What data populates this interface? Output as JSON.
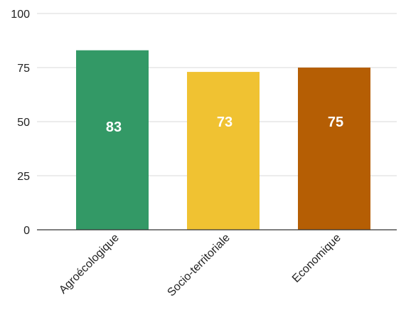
{
  "chart_data": {
    "type": "bar",
    "title": "",
    "xlabel": "",
    "ylabel": "",
    "categories": [
      "Agroécologique",
      "Socio-territoriale",
      "Economique"
    ],
    "values": [
      83,
      73,
      75
    ],
    "colors": [
      "#339966",
      "#f0c232",
      "#b55e04"
    ],
    "ylim": [
      0,
      100
    ],
    "yticks": [
      0,
      25,
      50,
      75,
      100
    ],
    "data_labels": [
      "83",
      "73",
      "75"
    ],
    "grid": true,
    "legend": "none"
  }
}
